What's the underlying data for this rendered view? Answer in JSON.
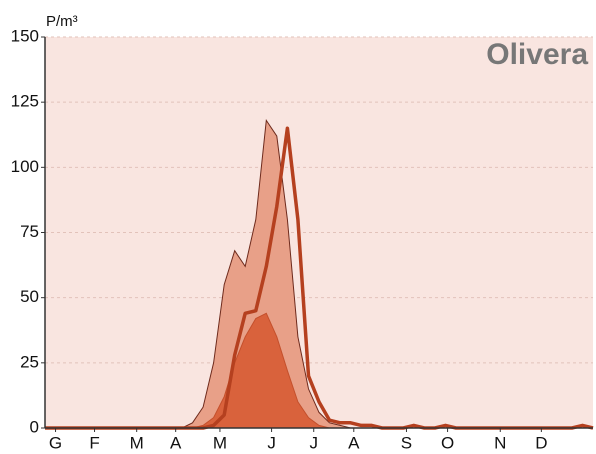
{
  "chart_data": {
    "type": "area",
    "title": "Olivera",
    "y_label": "P/m³",
    "x": [
      0,
      1,
      2,
      3,
      4,
      5,
      6,
      7,
      8,
      9,
      10,
      11,
      12,
      13,
      14,
      15,
      16,
      17,
      18,
      19,
      20,
      21,
      22,
      23,
      24,
      25,
      26,
      27,
      28,
      29,
      30,
      31,
      32,
      33,
      34,
      35,
      36,
      37,
      38,
      39,
      40,
      41,
      42,
      43,
      44,
      45,
      46,
      47,
      48,
      49,
      50,
      51,
      52
    ],
    "series": [
      {
        "type": "area",
        "color": "#e8a088",
        "stroke": "#6e2a1c",
        "values": [
          0,
          0,
          0,
          0,
          0,
          0,
          0,
          0,
          0,
          0,
          0,
          0,
          0,
          0,
          2,
          8,
          25,
          55,
          68,
          62,
          80,
          118,
          112,
          80,
          35,
          15,
          6,
          2,
          1,
          0,
          0,
          0,
          0,
          0,
          0,
          0,
          0,
          0,
          0,
          0,
          0,
          0,
          0,
          0,
          0,
          0,
          0,
          0,
          0,
          0,
          0,
          0,
          0
        ]
      },
      {
        "type": "area",
        "color": "#d9623c",
        "stroke": "#c4502c",
        "values": [
          0,
          0,
          0,
          0,
          0,
          0,
          0,
          0,
          0,
          0,
          0,
          0,
          0,
          0,
          0,
          1,
          4,
          12,
          25,
          35,
          42,
          44,
          35,
          22,
          10,
          4,
          1,
          0,
          0,
          0,
          0,
          0,
          0,
          0,
          0,
          0,
          0,
          0,
          0,
          0,
          0,
          0,
          0,
          0,
          0,
          0,
          0,
          0,
          0,
          0,
          0,
          0,
          0
        ]
      },
      {
        "type": "line",
        "color": "#b5401f",
        "values": [
          0,
          0,
          0,
          0,
          0,
          0,
          0,
          0,
          0,
          0,
          0,
          0,
          0,
          0,
          0,
          0,
          1,
          5,
          28,
          44,
          45,
          62,
          85,
          115,
          80,
          20,
          10,
          3,
          2,
          2,
          1,
          1,
          0,
          0,
          0,
          1,
          0,
          0,
          1,
          0,
          0,
          0,
          0,
          0,
          0,
          0,
          0,
          0,
          0,
          0,
          0,
          1,
          0
        ]
      }
    ],
    "xlim": [
      0,
      52
    ],
    "xticks": [
      {
        "value": 1,
        "label": "G"
      },
      {
        "value": 4.7,
        "label": "F"
      },
      {
        "value": 8.7,
        "label": "M"
      },
      {
        "value": 12.4,
        "label": "A"
      },
      {
        "value": 16.6,
        "label": "M"
      },
      {
        "value": 21.5,
        "label": "J"
      },
      {
        "value": 25.5,
        "label": "J"
      },
      {
        "value": 29.3,
        "label": "A"
      },
      {
        "value": 34.3,
        "label": "S"
      },
      {
        "value": 38.2,
        "label": "O"
      },
      {
        "value": 43.2,
        "label": "N"
      },
      {
        "value": 47.1,
        "label": "D"
      }
    ],
    "ylim": [
      0,
      150
    ],
    "yticks": [
      0,
      25,
      50,
      75,
      100,
      125,
      150
    ],
    "grid": true,
    "background": "#f9e5e0"
  }
}
